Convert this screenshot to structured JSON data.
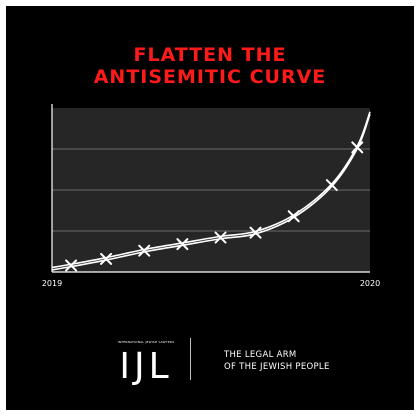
{
  "headline": {
    "line1": "FLATTEN THE",
    "line2": "ANTISEMITIC CURVE"
  },
  "chart_data": {
    "type": "line",
    "title": "",
    "xlabel": "",
    "ylabel": "",
    "x_tick_labels": [
      "2019",
      "2020"
    ],
    "xlim": [
      0,
      1
    ],
    "ylim": [
      0,
      1
    ],
    "grid": true,
    "series": [
      {
        "x": [
          0.0,
          0.06,
          0.17,
          0.29,
          0.41,
          0.53,
          0.64,
          0.76,
          0.88,
          0.96,
          1.0
        ],
        "y": [
          0.02,
          0.04,
          0.08,
          0.13,
          0.17,
          0.21,
          0.24,
          0.34,
          0.53,
          0.76,
          0.97
        ]
      }
    ],
    "markers": "barbed-wire-cross",
    "colors": {
      "background": "#262626",
      "gridline": "#6b6b6b",
      "line": "#ffffff"
    }
  },
  "logo": {
    "letters": "IJL",
    "small_text": "INTERNATIONAL JEWISH LAWYERS"
  },
  "tagline": {
    "line1": "THE LEGAL ARM",
    "line2": "OF THE JEWISH PEOPLE"
  },
  "colors": {
    "poster_background": "#000000",
    "headline": "#ff1a1a",
    "text": "#ffffff"
  }
}
